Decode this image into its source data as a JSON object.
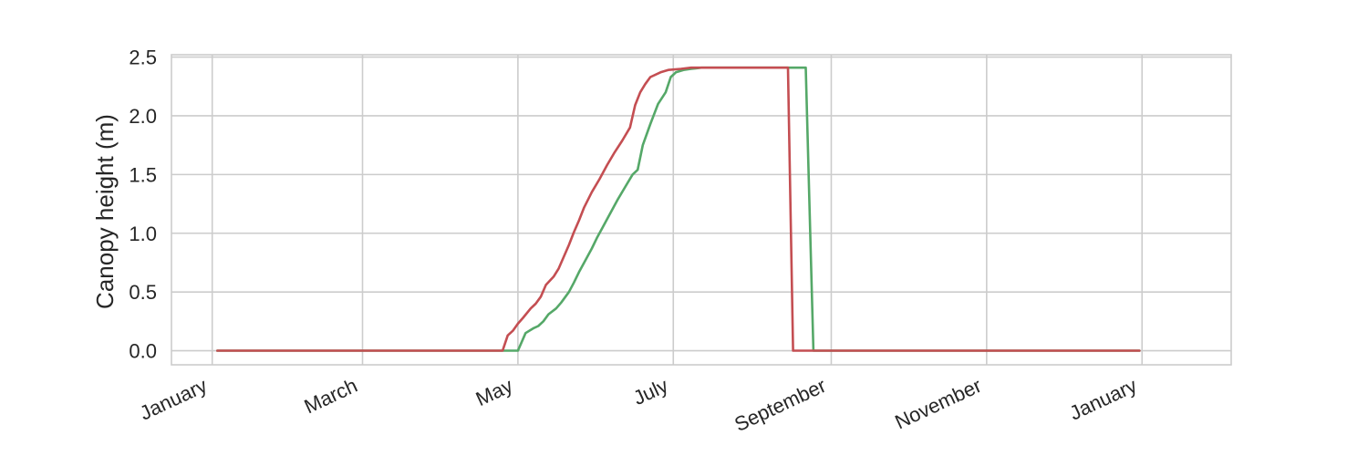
{
  "chart_data": {
    "type": "line",
    "title": "",
    "xlabel": "",
    "ylabel": "Canopy height (m)",
    "ylim": [
      -0.12,
      2.52
    ],
    "y_ticks": [
      0.0,
      0.5,
      1.0,
      1.5,
      2.0,
      2.5
    ],
    "y_tick_labels": [
      "0.0",
      "0.5",
      "1.0",
      "1.5",
      "2.0",
      "2.5"
    ],
    "x_unit": "day of year",
    "xlim": [
      -4,
      412
    ],
    "x_ticks": [
      {
        "day": 12,
        "label": "January"
      },
      {
        "day": 71,
        "label": "March"
      },
      {
        "day": 132,
        "label": "May"
      },
      {
        "day": 193,
        "label": "July"
      },
      {
        "day": 255,
        "label": "September"
      },
      {
        "day": 316,
        "label": "November"
      },
      {
        "day": 377,
        "label": "January"
      }
    ],
    "grid": true,
    "series": [
      {
        "color": "#55a868",
        "points": [
          [
            14,
            0.0
          ],
          [
            132,
            0.0
          ],
          [
            135,
            0.15
          ],
          [
            138,
            0.19
          ],
          [
            140,
            0.21
          ],
          [
            142,
            0.25
          ],
          [
            144,
            0.31
          ],
          [
            147,
            0.36
          ],
          [
            149,
            0.41
          ],
          [
            152,
            0.5
          ],
          [
            154,
            0.58
          ],
          [
            156,
            0.67
          ],
          [
            158,
            0.75
          ],
          [
            161,
            0.87
          ],
          [
            163,
            0.96
          ],
          [
            165,
            1.04
          ],
          [
            168,
            1.16
          ],
          [
            171,
            1.28
          ],
          [
            174,
            1.39
          ],
          [
            177,
            1.5
          ],
          [
            179,
            1.54
          ],
          [
            181,
            1.75
          ],
          [
            184,
            1.93
          ],
          [
            187,
            2.1
          ],
          [
            190,
            2.2
          ],
          [
            192,
            2.33
          ],
          [
            194,
            2.37
          ],
          [
            197,
            2.39
          ],
          [
            200,
            2.4
          ],
          [
            204,
            2.41
          ],
          [
            245,
            2.41
          ],
          [
            248,
            0.0
          ],
          [
            376,
            0.0
          ]
        ]
      },
      {
        "color": "#c44e52",
        "points": [
          [
            14,
            0.0
          ],
          [
            126,
            0.0
          ],
          [
            128,
            0.13
          ],
          [
            130,
            0.17
          ],
          [
            132,
            0.23
          ],
          [
            134,
            0.28
          ],
          [
            137,
            0.36
          ],
          [
            139,
            0.4
          ],
          [
            141,
            0.46
          ],
          [
            143,
            0.56
          ],
          [
            146,
            0.63
          ],
          [
            148,
            0.7
          ],
          [
            150,
            0.8
          ],
          [
            152,
            0.9
          ],
          [
            154,
            1.01
          ],
          [
            156,
            1.11
          ],
          [
            158,
            1.22
          ],
          [
            161,
            1.35
          ],
          [
            164,
            1.46
          ],
          [
            167,
            1.58
          ],
          [
            170,
            1.69
          ],
          [
            173,
            1.79
          ],
          [
            176,
            1.9
          ],
          [
            178,
            2.09
          ],
          [
            180,
            2.2
          ],
          [
            182,
            2.27
          ],
          [
            184,
            2.33
          ],
          [
            188,
            2.37
          ],
          [
            191,
            2.39
          ],
          [
            196,
            2.4
          ],
          [
            200,
            2.41
          ],
          [
            238,
            2.41
          ],
          [
            240,
            0.0
          ],
          [
            376,
            0.0
          ]
        ]
      }
    ]
  }
}
